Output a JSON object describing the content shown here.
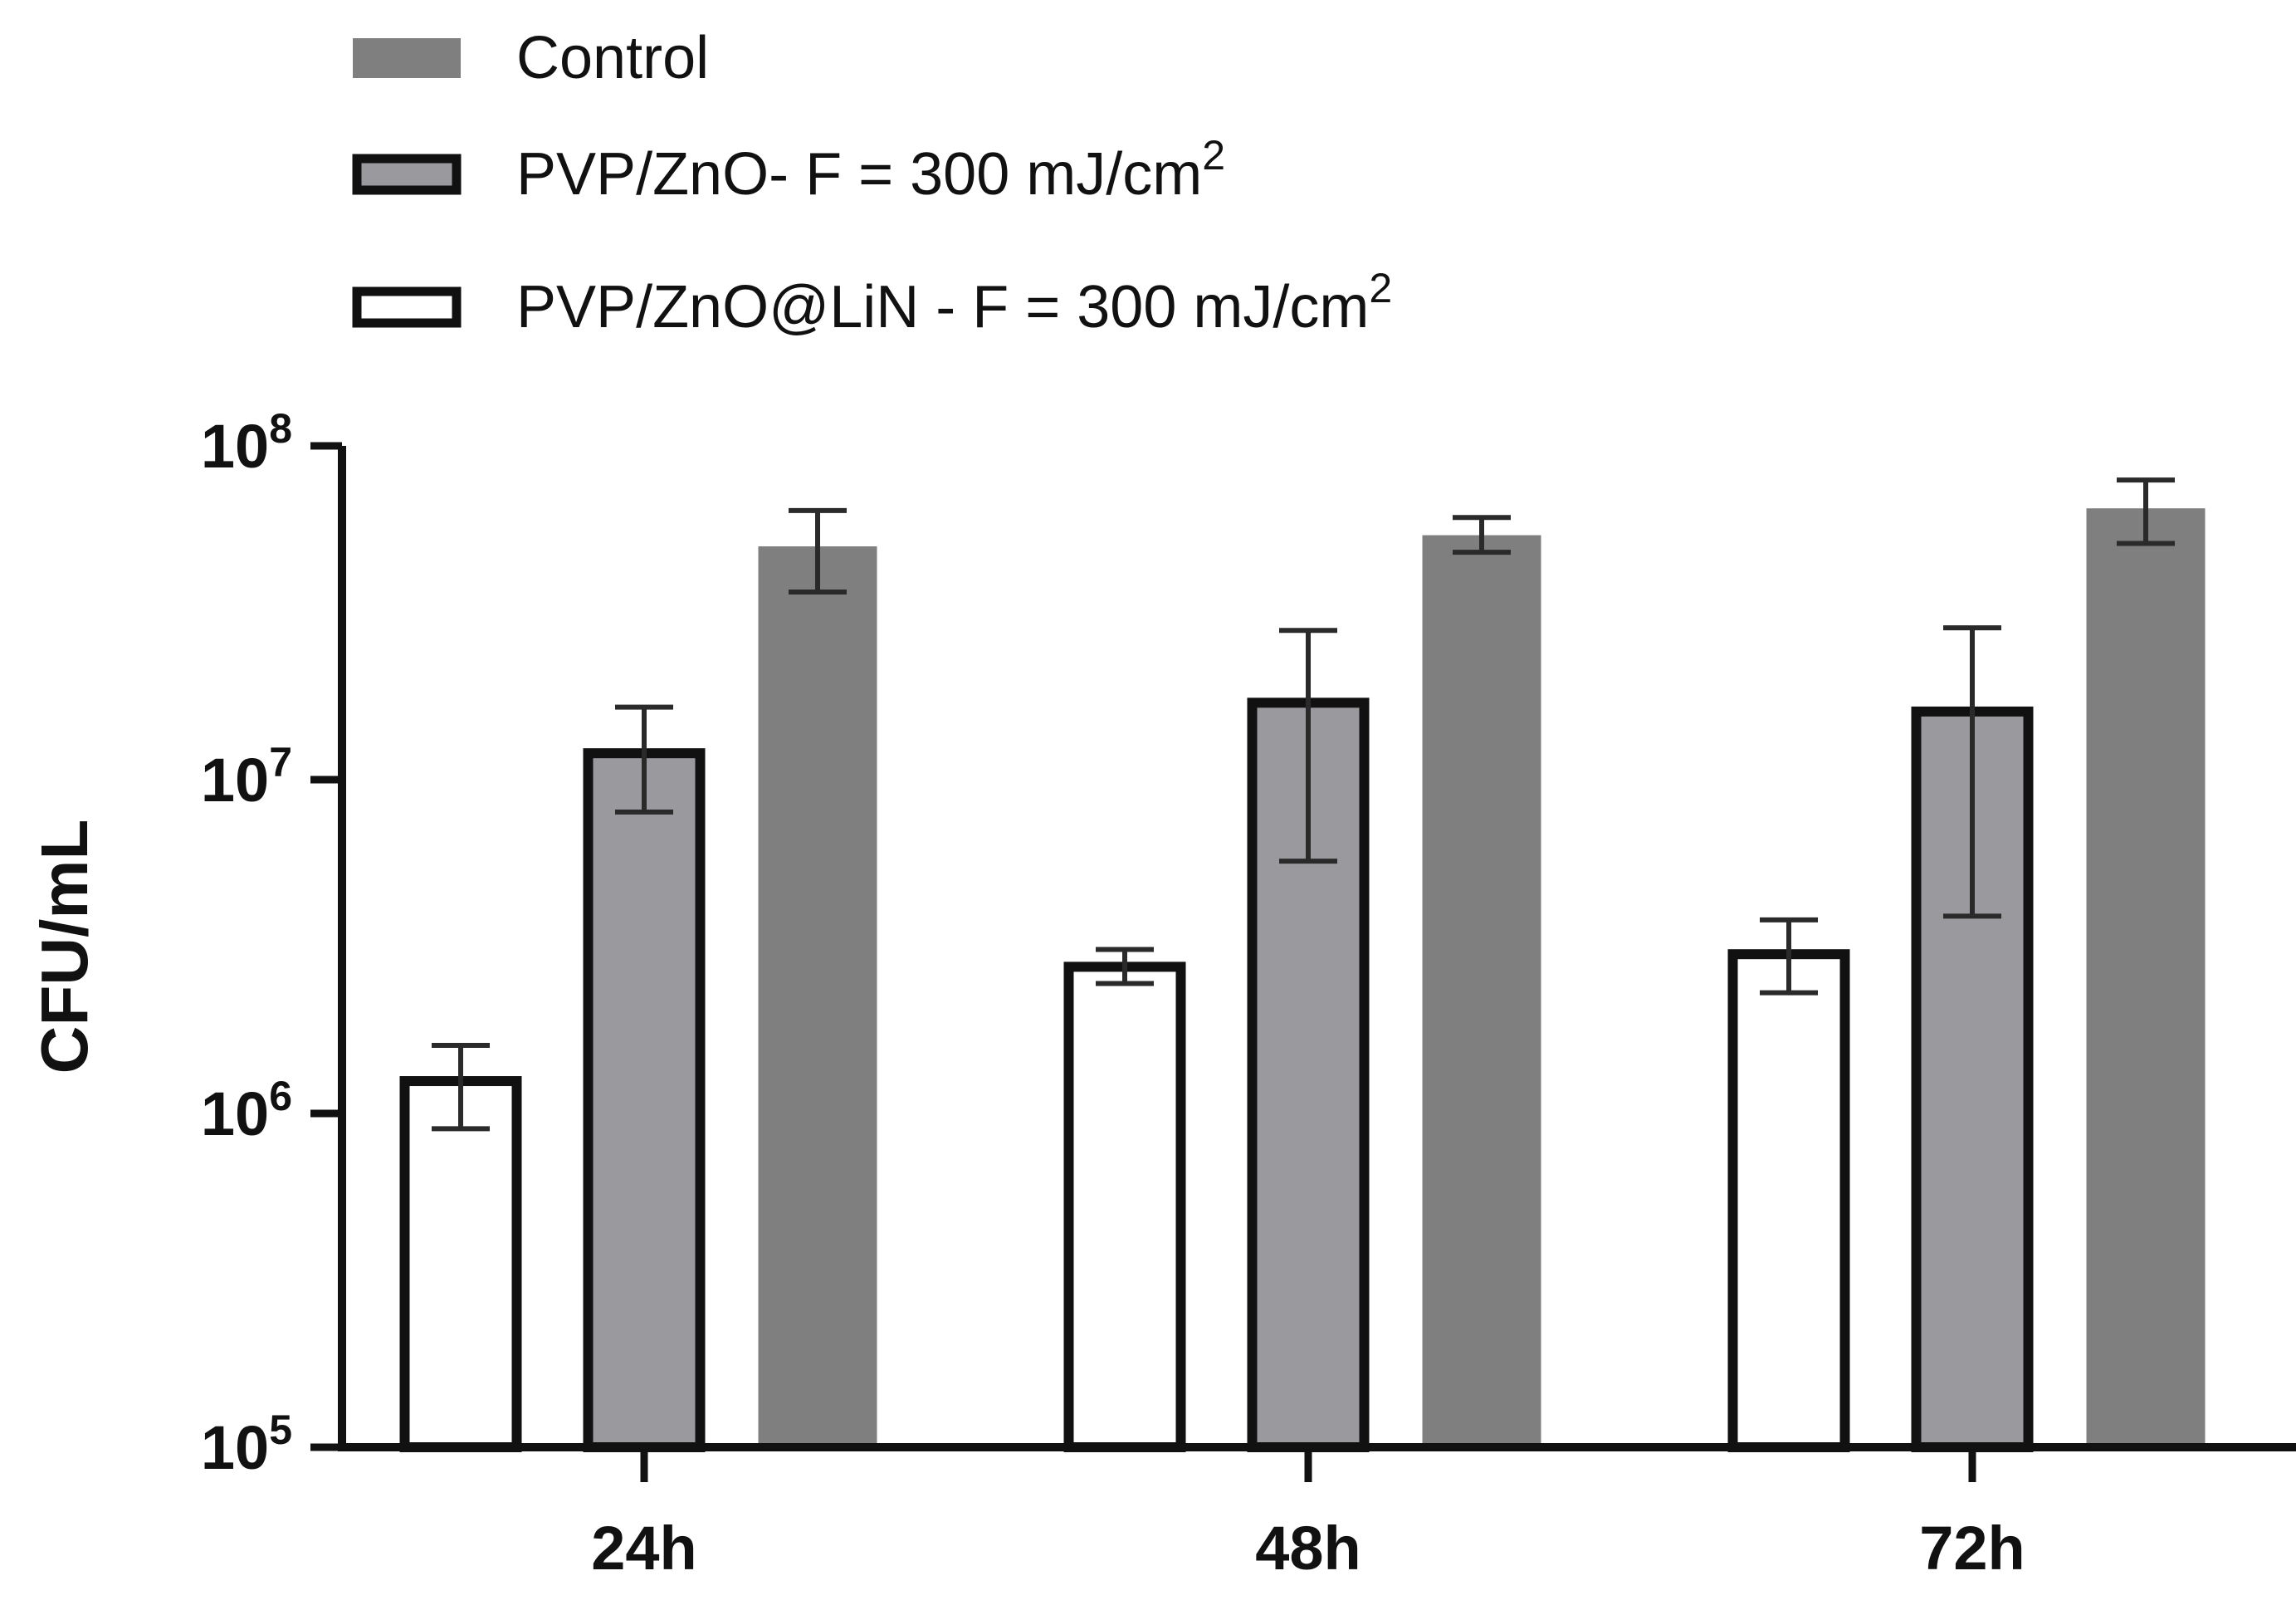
{
  "chart_data": {
    "type": "bar",
    "title": "",
    "xlabel": "",
    "ylabel": "CFU/mL",
    "yscale": "log",
    "ylim": [
      100000,
      100000000
    ],
    "yticks": [
      {
        "value": 100000,
        "base": "10",
        "exp": "5"
      },
      {
        "value": 1000000,
        "base": "10",
        "exp": "6"
      },
      {
        "value": 10000000,
        "base": "10",
        "exp": "7"
      },
      {
        "value": 100000000,
        "base": "10",
        "exp": "8"
      }
    ],
    "categories": [
      "24h",
      "48h",
      "72h"
    ],
    "series": [
      {
        "name": "PVP/ZnO@LiN - F = 300 mJ/cm",
        "name_sup": "2",
        "style": "open",
        "fill": "#ffffff",
        "values": [
          1250000,
          2750000,
          3000000
        ],
        "err_low": [
          900000,
          2450000,
          2300000
        ],
        "err_high": [
          1600000,
          3100000,
          3800000
        ]
      },
      {
        "name": "PVP/ZnO- F = 300 mJ/cm",
        "name_sup": "2",
        "style": "outlined",
        "fill": "#9a9a9e",
        "values": [
          12000000,
          17000000,
          16000000
        ],
        "err_low": [
          8000000,
          5700000,
          3900000
        ],
        "err_high": [
          16500000,
          28000000,
          28500000
        ]
      },
      {
        "name": "Control",
        "name_sup": "",
        "style": "solid",
        "fill": "#7f7f7f",
        "values": [
          50000000,
          54000000,
          65000000
        ],
        "err_low": [
          36500000,
          48000000,
          51000000
        ],
        "err_high": [
          64000000,
          61000000,
          79000000
        ]
      }
    ],
    "legend": {
      "position": "top-left",
      "order": [
        "Control",
        "PVP/ZnO- F = 300 mJ/cm",
        "PVP/ZnO@LiN - F = 300 mJ/cm"
      ]
    },
    "colors": {
      "axis": "#111111",
      "outline": "#111111",
      "error_bar": "#2a2a2a"
    }
  }
}
